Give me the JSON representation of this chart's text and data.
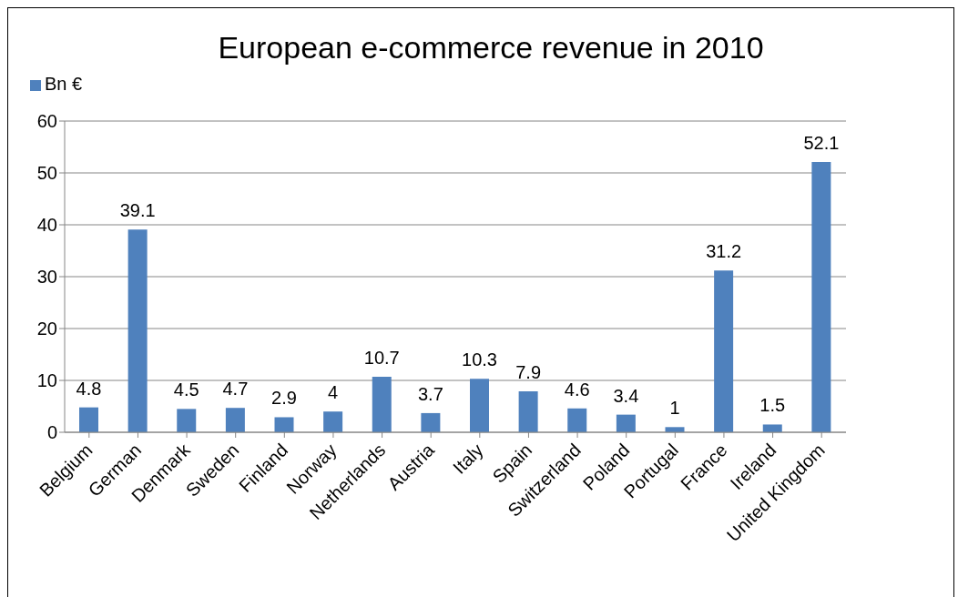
{
  "chart_data": {
    "type": "bar",
    "title": "European e-commerce revenue in 2010",
    "categories": [
      "Belgium",
      "German",
      "Denmark",
      "Sweden",
      "Finland",
      "Norway",
      "Netherlands",
      "Austria",
      "Italy",
      "Spain",
      "Switzerland",
      "Poland",
      "Portugal",
      "France",
      "Ireland",
      "United Kingdom"
    ],
    "series": [
      {
        "name": "Bn €",
        "color": "#4f81bd",
        "values": [
          4.8,
          39.1,
          4.5,
          4.7,
          2.9,
          4,
          10.7,
          3.7,
          10.3,
          7.9,
          4.6,
          3.4,
          1,
          31.2,
          1.5,
          52.1
        ]
      }
    ],
    "ylim": [
      0,
      60
    ],
    "yticks": [
      0,
      10,
      20,
      30,
      40,
      50,
      60
    ],
    "grid": "y",
    "legend": "top left",
    "data_labels": true
  }
}
